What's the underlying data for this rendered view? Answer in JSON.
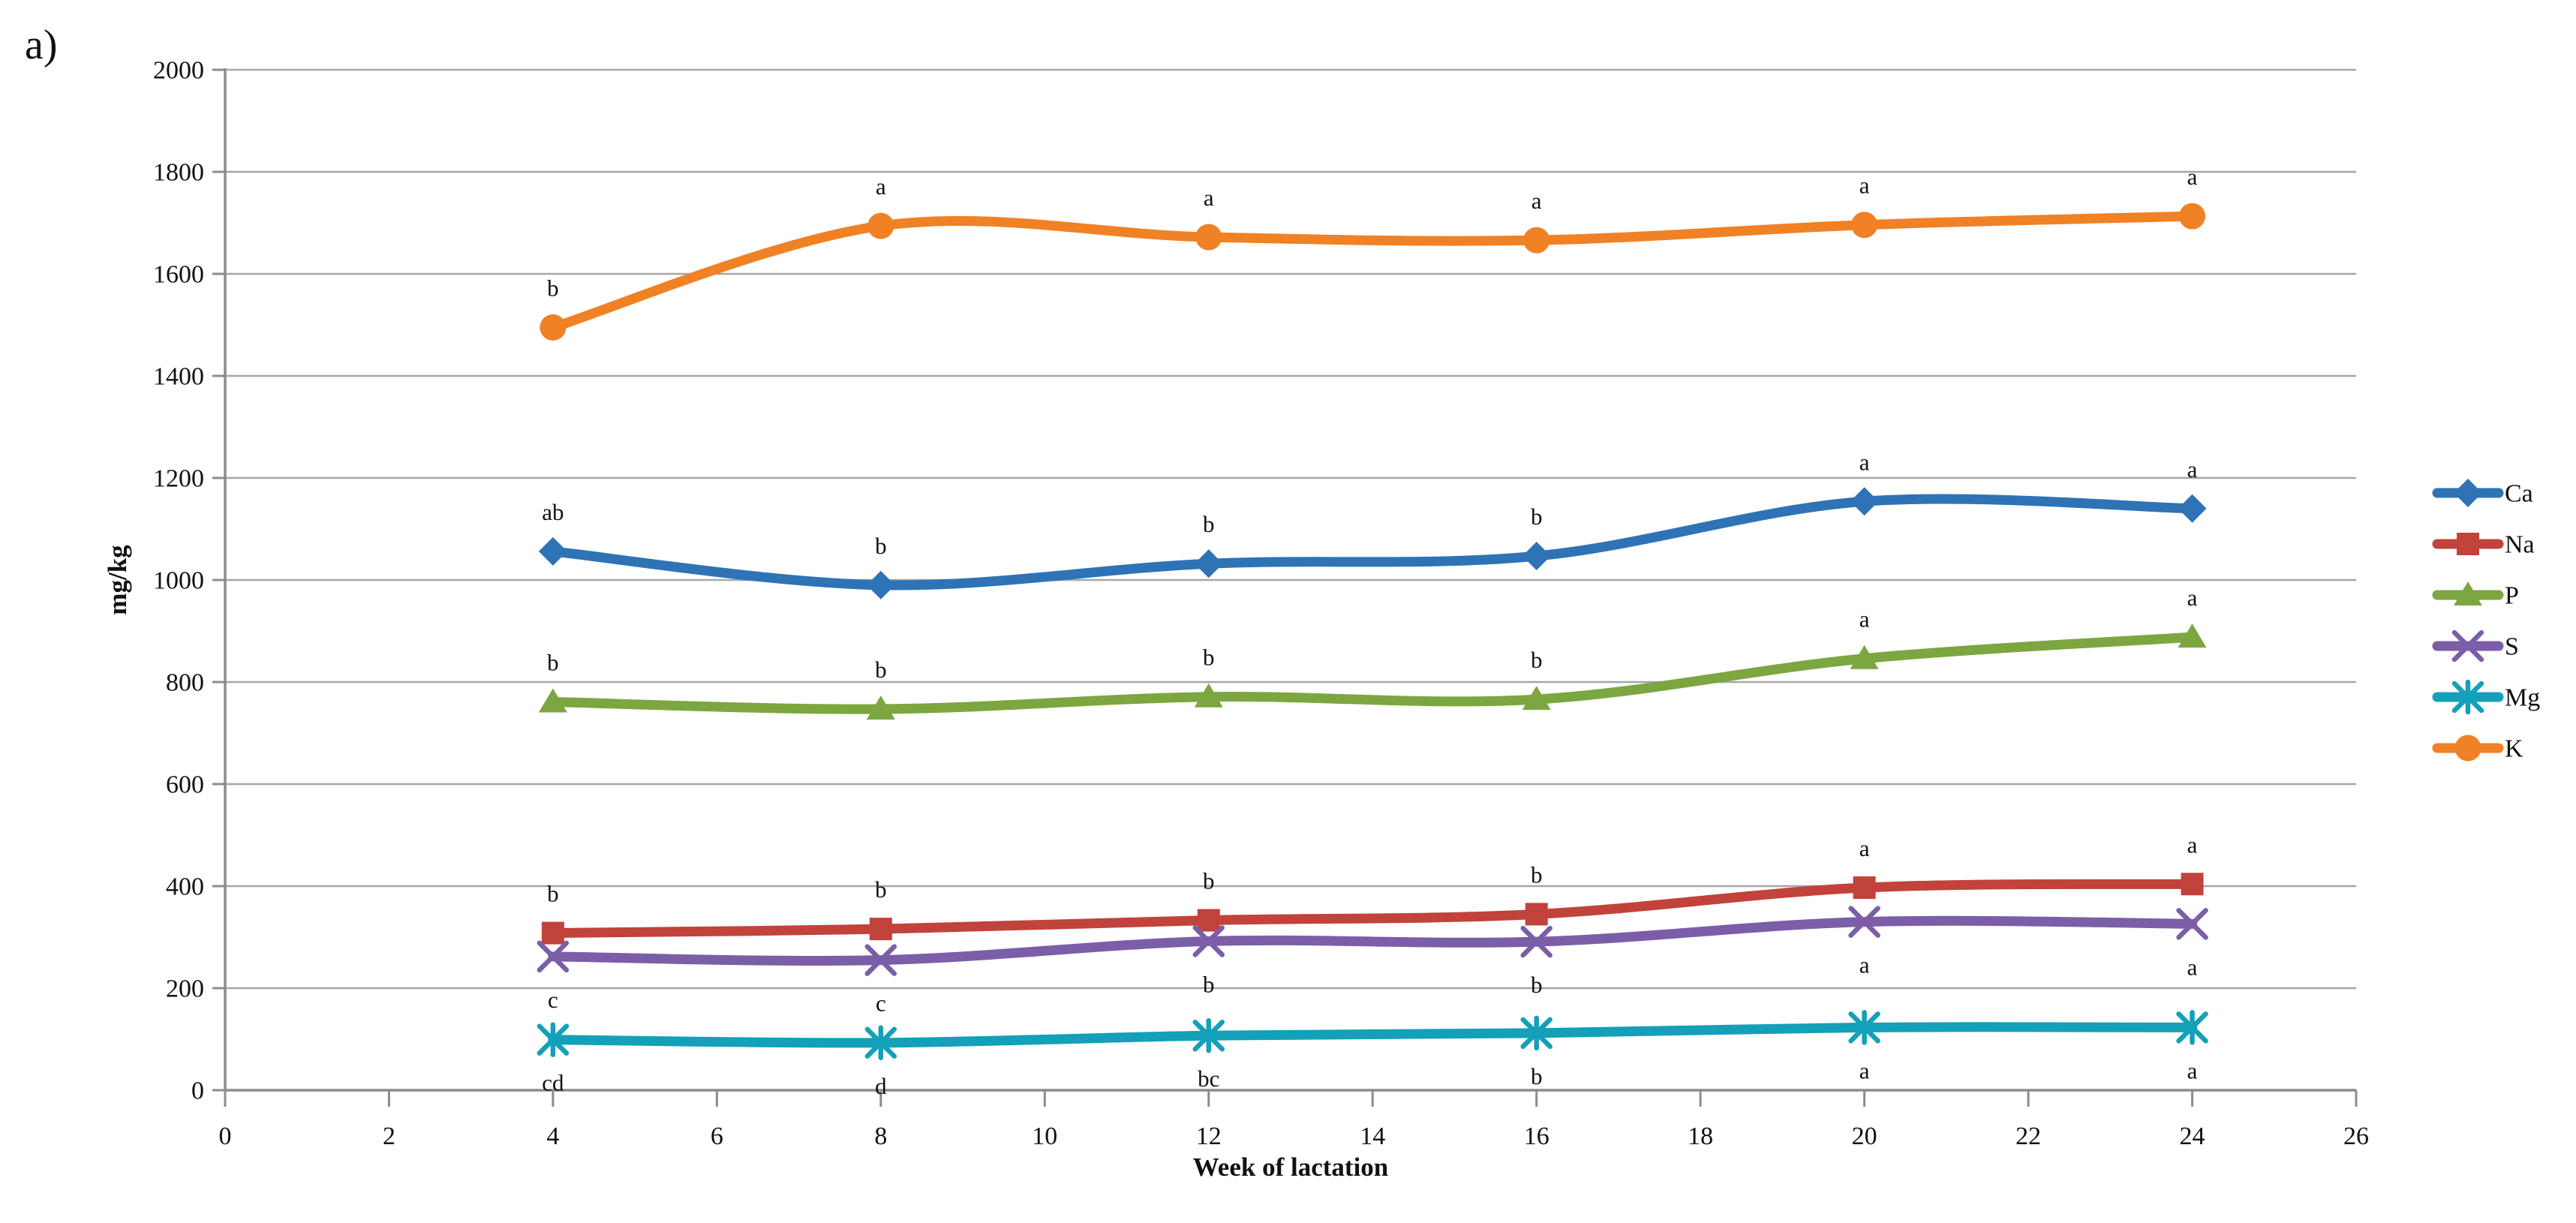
{
  "panel_label": "a)",
  "chart_data": {
    "type": "line",
    "title": "",
    "xlabel": "Week of lactation",
    "ylabel": "mg/kg",
    "x": [
      4,
      8,
      12,
      16,
      20,
      24
    ],
    "xlim": [
      0,
      26
    ],
    "ylim": [
      0,
      2000
    ],
    "xticks": [
      "0",
      "2",
      "4",
      "6",
      "8",
      "10",
      "12",
      "14",
      "16",
      "18",
      "20",
      "22",
      "24",
      "26"
    ],
    "yticks": [
      "0",
      "200",
      "400",
      "600",
      "800",
      "1000",
      "1200",
      "1400",
      "1600",
      "1800",
      "2000"
    ],
    "grid": "horizontal",
    "legend_position": "right",
    "series": [
      {
        "name": "Ca",
        "color": "#2E73B5",
        "marker": "diamond",
        "values": [
          1056,
          990,
          1032,
          1047,
          1154,
          1140
        ],
        "point_labels": [
          "ab",
          "b",
          "b",
          "b",
          "a",
          "a"
        ],
        "label_side": "above"
      },
      {
        "name": "Na",
        "color": "#C2423C",
        "marker": "square",
        "values": [
          308,
          316,
          333,
          345,
          397,
          404
        ],
        "point_labels": [
          "b",
          "b",
          "b",
          "b",
          "a",
          "a"
        ],
        "label_side": "above"
      },
      {
        "name": "P",
        "color": "#7CA640",
        "marker": "triangle",
        "values": [
          761,
          747,
          771,
          766,
          846,
          888
        ],
        "point_labels": [
          "b",
          "b",
          "b",
          "b",
          "a",
          "a"
        ],
        "label_side": "above"
      },
      {
        "name": "S",
        "color": "#7B5EA7",
        "marker": "x",
        "values": [
          262,
          255,
          292,
          291,
          330,
          326
        ],
        "point_labels": [
          "c",
          "c",
          "b",
          "b",
          "a",
          "a"
        ],
        "label_side": "below"
      },
      {
        "name": "Mg",
        "color": "#14A0B8",
        "marker": "asterisk",
        "values": [
          99,
          93,
          107,
          112,
          123,
          123
        ],
        "point_labels": [
          "cd",
          "d",
          "bc",
          "b",
          "a",
          "a"
        ],
        "label_side": "below"
      },
      {
        "name": "K",
        "color": "#F08125",
        "marker": "circle",
        "values": [
          1495,
          1694,
          1672,
          1666,
          1696,
          1713
        ],
        "point_labels": [
          "b",
          "a",
          "a",
          "a",
          "a",
          "a"
        ],
        "label_side": "above"
      }
    ],
    "colors": {
      "grid": "#A6A6A6",
      "axis": "#8C8C8C",
      "text": "#111111"
    }
  }
}
